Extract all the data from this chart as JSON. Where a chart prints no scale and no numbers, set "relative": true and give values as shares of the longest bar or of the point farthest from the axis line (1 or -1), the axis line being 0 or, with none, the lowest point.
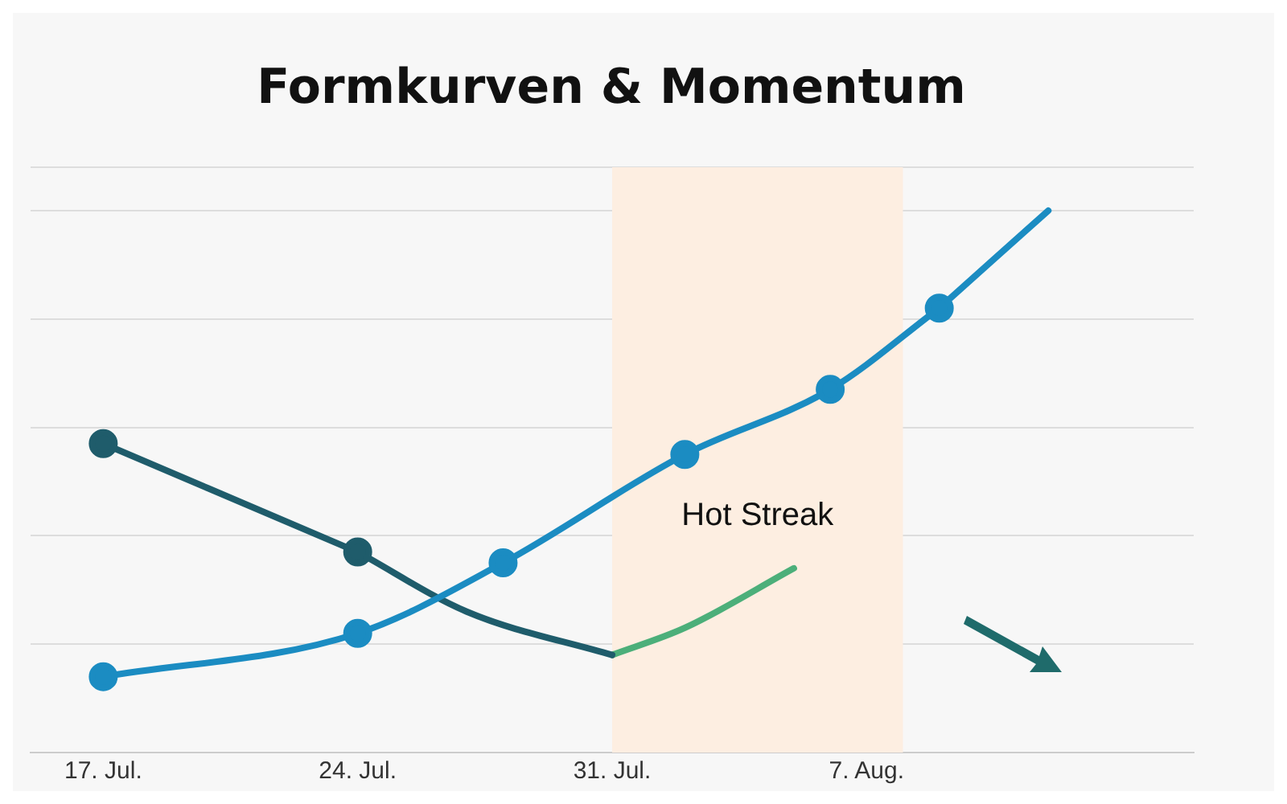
{
  "chart_data": {
    "type": "line",
    "title": "Formkurven & Momentum",
    "relative": true,
    "xticks": [
      {
        "value": "--07-17",
        "label": "17. Jul."
      },
      {
        "value": "--07-24",
        "label": "24. Jul."
      },
      {
        "value": "--07-31",
        "label": "31. Jul."
      },
      {
        "value": "--08-07",
        "label": "7. Aug."
      }
    ],
    "xlim": [
      "--07-15",
      "--08-16"
    ],
    "series": [
      {
        "color": "#1b8cc2",
        "x": [
          "--07-17",
          "--07-24",
          "--07-28",
          "--08-02",
          "--08-06",
          "--08-09"
        ],
        "values": [
          0.14,
          0.22,
          0.35,
          0.55,
          0.67,
          0.82
        ],
        "marker": "circle"
      },
      {
        "color": "#1b8cc2",
        "x": [
          "--08-09",
          "--08-12"
        ],
        "values": [
          0.82,
          1.0
        ],
        "marker": "none"
      },
      {
        "color": "#1f5c6b",
        "x": [
          "--07-17",
          "--07-24"
        ],
        "values": [
          0.57,
          0.37
        ],
        "marker": "circle"
      },
      {
        "color": "#1f5c6b",
        "x": [
          "--07-24",
          "--07-27",
          "--07-31"
        ],
        "values": [
          0.37,
          0.26,
          0.18
        ],
        "marker": "none"
      },
      {
        "color": "#4caf7a",
        "x": [
          "--07-31",
          "--08-02",
          "--08-05"
        ],
        "values": [
          0.18,
          0.23,
          0.34
        ],
        "marker": "none"
      }
    ],
    "bands": [
      {
        "axis": "x",
        "from": "--07-31",
        "to": "--08-08",
        "color": "#fdeee1"
      }
    ],
    "annotations": [
      "Hot Streak"
    ],
    "grid": "y",
    "legend": false
  }
}
